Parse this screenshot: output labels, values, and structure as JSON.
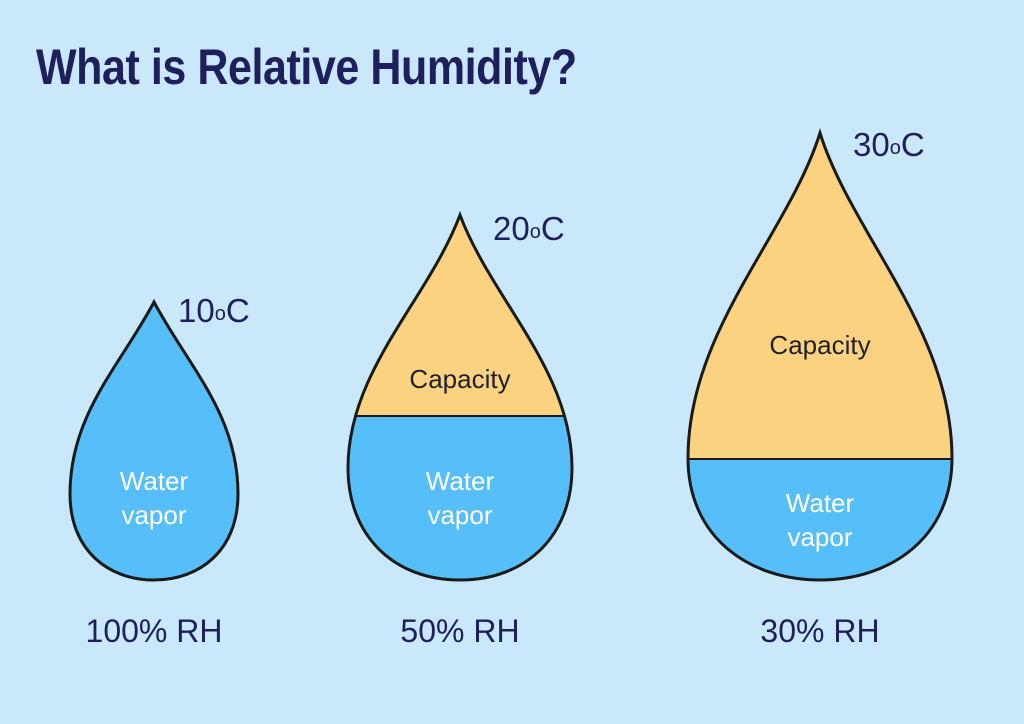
{
  "title": "What is Relative Humidity?",
  "drops": [
    {
      "temperature": "10",
      "degree_mark": "o",
      "unit": "C",
      "water_label_line1": "Water",
      "water_label_line2": "vapor",
      "capacity_label": "",
      "rh_label": "100% RH",
      "relative_humidity_percent": 100
    },
    {
      "temperature": "20",
      "degree_mark": "o",
      "unit": "C",
      "water_label_line1": "Water",
      "water_label_line2": "vapor",
      "capacity_label": "Capacity",
      "rh_label": "50% RH",
      "relative_humidity_percent": 50
    },
    {
      "temperature": "30",
      "degree_mark": "o",
      "unit": "C",
      "water_label_line1": "Water",
      "water_label_line2": "vapor",
      "capacity_label": "Capacity",
      "rh_label": "30% RH",
      "relative_humidity_percent": 30
    }
  ],
  "colors": {
    "background": "#c9e9fb",
    "water": "#56bef9",
    "capacity": "#fbd27f",
    "outline": "#1a1a1a",
    "text_dark": "#1f1f5e"
  }
}
